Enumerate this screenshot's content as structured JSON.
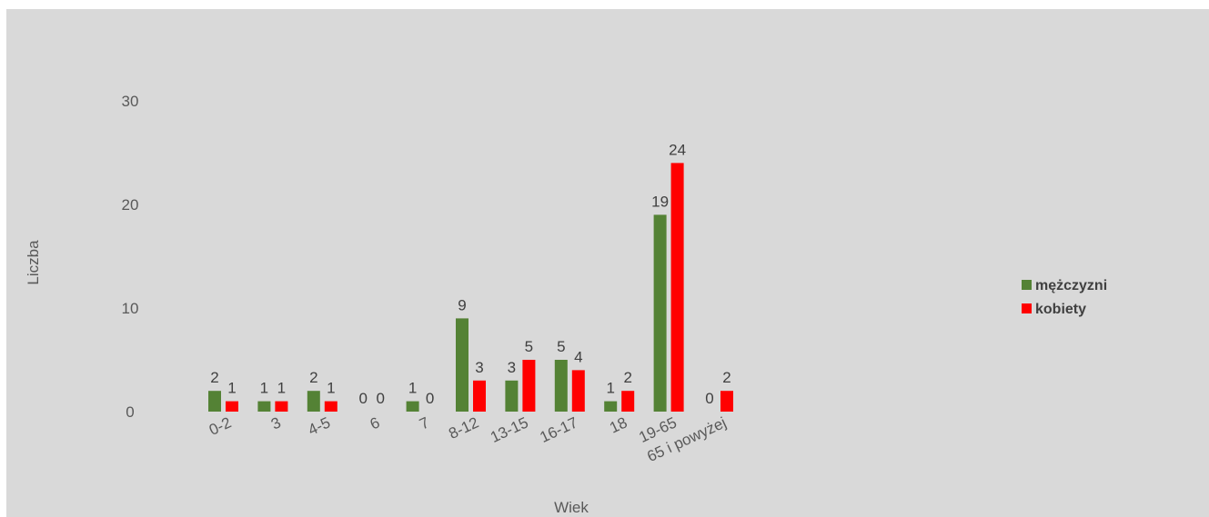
{
  "chart_data": {
    "type": "bar",
    "xlabel": "Wiek",
    "ylabel": "Liczba",
    "ylim": [
      0,
      30
    ],
    "yticks": [
      "0",
      "10",
      "20",
      "30"
    ],
    "grid": false,
    "legend_position": "right",
    "background": "#d9d9d9",
    "categories": [
      "0-2",
      "3",
      "4-5",
      "6",
      "7",
      "8-12",
      "13-15",
      "16-17",
      "18",
      "19-65",
      "65 i powyżej"
    ],
    "series": [
      {
        "name": "mężczyzni",
        "color": "#548235",
        "values": [
          2,
          1,
          2,
          0,
          1,
          9,
          3,
          5,
          1,
          19,
          0
        ]
      },
      {
        "name": "kobiety",
        "color": "#ff0000",
        "values": [
          1,
          1,
          1,
          0,
          0,
          3,
          5,
          4,
          2,
          24,
          2
        ]
      }
    ]
  }
}
